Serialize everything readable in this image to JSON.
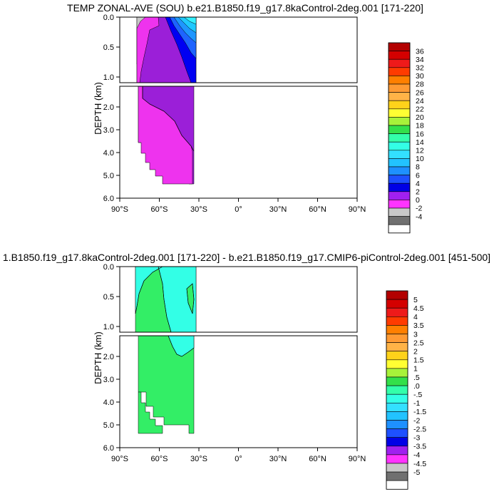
{
  "chart_data": [
    {
      "type": "contour",
      "title": "TEMP ZONAL-AVE (SOU) b.e21.B1850.f19_g17.8kaControl-2deg.001 [171-220]",
      "ylabel": "DEPTH (km)",
      "xlim": [
        -90,
        90
      ],
      "x_ticks": [
        -90,
        -60,
        -30,
        0,
        30,
        60,
        90
      ],
      "x_tick_labels": [
        "90°S",
        "60°S",
        "30°S",
        "0°",
        "30°N",
        "60°N",
        "90°N"
      ],
      "ylim_upper_panel": [
        0,
        1.1
      ],
      "ylim_lower_panel": [
        1.1,
        6.0
      ],
      "y_ticks_upper": [
        0.0,
        0.5,
        1.0
      ],
      "y_tick_labels_upper": [
        "0.0",
        "0.5",
        "1.0"
      ],
      "y_ticks_lower": [
        2.0,
        3.0,
        4.0,
        5.0,
        6.0
      ],
      "y_tick_labels_lower": [
        "2.0",
        "3.0",
        "4.0",
        "5.0",
        "6.0"
      ],
      "colorbar": {
        "labels": [
          "36",
          "34",
          "32",
          "30",
          "28",
          "26",
          "24",
          "22",
          "20",
          "18",
          "16",
          "14",
          "12",
          "10",
          "8",
          "6",
          "4",
          "2",
          "0",
          "-2",
          "-4"
        ],
        "colors": [
          "#b30000",
          "#d40000",
          "#ee1a1a",
          "#ff3b00",
          "#ff7f00",
          "#ff9a33",
          "#ffb347",
          "#ffd21a",
          "#ffff33",
          "#a8f23a",
          "#33e04a",
          "#33ffaa",
          "#33ffe6",
          "#33e0ff",
          "#22c3ff",
          "#1e90ff",
          "#1e50ff",
          "#0000e6",
          "#a020f0",
          "#ff33ff",
          "#c8c8c8",
          "#707070",
          "#ffffff"
        ]
      },
      "colors": {
        "gray": "#c8c8c8",
        "magenta": "#ee33ee",
        "purple": "#9b1fd8",
        "blue1": "#0000f2",
        "blue2": "#1e64ff",
        "blue3": "#1e96ff",
        "blue4": "#1ec8ff",
        "cyan": "#33f0ff"
      }
    },
    {
      "type": "contour",
      "title": "1.B1850.f19_g17.8kaControl-2deg.001 [171-220] - b.e21.B1850.f19_g17.CMIP6-piControl-2deg.001 [451-500]",
      "ylabel": "DEPTH (km)",
      "xlim": [
        -90,
        90
      ],
      "x_ticks": [
        -90,
        -60,
        -30,
        0,
        30,
        60,
        90
      ],
      "x_tick_labels": [
        "90°S",
        "60°S",
        "30°S",
        "0°",
        "30°N",
        "60°N",
        "90°N"
      ],
      "ylim_upper_panel": [
        0,
        1.1
      ],
      "ylim_lower_panel": [
        1.1,
        6.0
      ],
      "y_ticks_upper": [
        0.0,
        0.5,
        1.0
      ],
      "y_tick_labels_upper": [
        "0.0",
        "0.5",
        "1.0"
      ],
      "y_ticks_lower": [
        2.0,
        3.0,
        4.0,
        5.0,
        6.0
      ],
      "y_tick_labels_lower": [
        "2.0",
        "3.0",
        "4.0",
        "5.0",
        "6.0"
      ],
      "colorbar": {
        "labels": [
          "5",
          "4.5",
          "4",
          "3.5",
          "3",
          "2.5",
          "2",
          "1.5",
          "1",
          ".5",
          ".0",
          "-.5",
          "-1",
          "-1.5",
          "-2",
          "-2.5",
          "-3",
          "-3.5",
          "-4",
          "-4.5",
          "-5"
        ],
        "colors": [
          "#b30000",
          "#d40000",
          "#ee1a1a",
          "#ff3b00",
          "#ff7f00",
          "#ff9a33",
          "#ffb347",
          "#ffd21a",
          "#ffff33",
          "#a8f23a",
          "#33e04a",
          "#33ffaa",
          "#33ffe6",
          "#33e0ff",
          "#22c3ff",
          "#1e90ff",
          "#1e50ff",
          "#0000e6",
          "#a020f0",
          "#ff33ff",
          "#c8c8c8",
          "#707070",
          "#ffffff"
        ]
      },
      "colors": {
        "green": "#33ee66",
        "cyan": "#33ffe6"
      }
    }
  ]
}
